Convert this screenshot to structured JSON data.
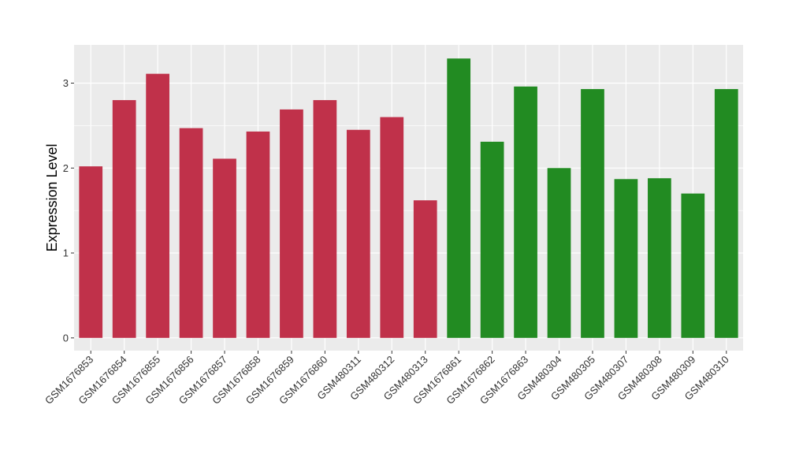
{
  "chart_data": {
    "type": "bar",
    "title": "",
    "xlabel": "",
    "ylabel": "Expression Level",
    "ylim": [
      -0.15,
      3.45
    ],
    "yticks": [
      0,
      1,
      2,
      3
    ],
    "grid": true,
    "legend": "none",
    "categories": [
      "GSM1676853",
      "GSM1676854",
      "GSM1676855",
      "GSM1676856",
      "GSM1676857",
      "GSM1676858",
      "GSM1676859",
      "GSM1676860",
      "GSM480311",
      "GSM480312",
      "GSM480313",
      "GSM1676861",
      "GSM1676862",
      "GSM1676863",
      "GSM480304",
      "GSM480305",
      "GSM480307",
      "GSM480308",
      "GSM480309",
      "GSM480310"
    ],
    "values": [
      2.02,
      2.8,
      3.11,
      2.47,
      2.11,
      2.43,
      2.69,
      2.8,
      2.45,
      2.6,
      1.62,
      3.29,
      2.31,
      2.96,
      2.0,
      2.93,
      1.87,
      1.88,
      1.7,
      2.93
    ],
    "bar_colors": [
      "#C0314A",
      "#C0314A",
      "#C0314A",
      "#C0314A",
      "#C0314A",
      "#C0314A",
      "#C0314A",
      "#C0314A",
      "#C0314A",
      "#C0314A",
      "#C0314A",
      "#228B22",
      "#228B22",
      "#228B22",
      "#228B22",
      "#228B22",
      "#228B22",
      "#228B22",
      "#228B22",
      "#228B22"
    ],
    "panel_background": "#EBEBEB",
    "grid_color": "#FFFFFF"
  }
}
